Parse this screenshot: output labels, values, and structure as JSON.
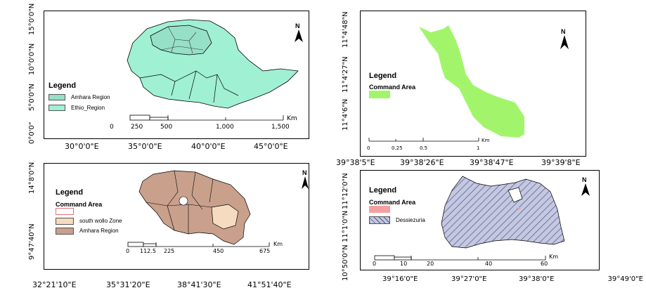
{
  "panels": {
    "ethiopia": {
      "lat_ticks": [
        "15°0'0\"N",
        "10°0'0\"N",
        "5°0'0\"N",
        "0°0'0\""
      ],
      "lon_ticks": [
        "30°0'0\"E",
        "35°0'0\"E",
        "40°0'0\"E",
        "45°0'0\"E"
      ],
      "legend_title": "Legend",
      "legend_items": [
        {
          "label": "Amhara Region",
          "color": "#97e0c8"
        },
        {
          "label": "Ethio_Region",
          "color": "#a0f0d4"
        }
      ],
      "scale_labels": [
        "0",
        "250",
        "500",
        "1,000",
        "1,500"
      ],
      "scale_unit": "Km",
      "north": "N"
    },
    "command": {
      "lat_ticks": [
        "11°4'48\"N",
        "11°4'27\"N",
        "11°4'6\"N"
      ],
      "lon_ticks": [
        "39°38'5\"E",
        "39°38'26\"E",
        "39°38'47\"E",
        "39°39'8\"E"
      ],
      "legend_title": "Legend",
      "legend_sub": "Command Area",
      "legend_color": "#a2f56b",
      "scale_labels": [
        "0",
        "0.25",
        "0.5",
        "1"
      ],
      "scale_unit": "Km",
      "north": "N"
    },
    "amhara": {
      "lat_ticks": [
        "14°8'0\"N",
        "9°47'40\"N"
      ],
      "lon_ticks": [
        "32°21'10\"E",
        "35°31'20\"E",
        "38°41'30\"E",
        "41°51'40\"E"
      ],
      "legend_title": "Legend",
      "legend_sub": "Command Area",
      "legend_items": [
        {
          "label": "",
          "color": "#ffffff",
          "border": "#e07070"
        },
        {
          "label": "south wollo Zone",
          "color": "#f5dcc0"
        },
        {
          "label": "Amhara Region",
          "color": "#c9a08c"
        }
      ],
      "scale_labels": [
        "0",
        "112.5",
        "225",
        "450",
        "675"
      ],
      "scale_unit": "Km",
      "north": "N"
    },
    "wollo": {
      "lat_ticks": [
        "11°12'0\"N",
        "11°1'0\"N",
        "10°50'0\"N"
      ],
      "lon_ticks": [
        "39°16'0\"E",
        "39°27'0\"E",
        "39°38'0\"E",
        "39°49'0\"E"
      ],
      "legend_title": "Legend",
      "legend_sub": "Command Area",
      "legend_items": [
        {
          "label": "",
          "color": "#f4a0a0"
        },
        {
          "label": "Dessiezuria",
          "color": "#b8bcd8"
        }
      ],
      "scale_labels": [
        "0",
        "10",
        "20",
        "40",
        "60"
      ],
      "scale_unit": "Km",
      "north": "N"
    }
  }
}
